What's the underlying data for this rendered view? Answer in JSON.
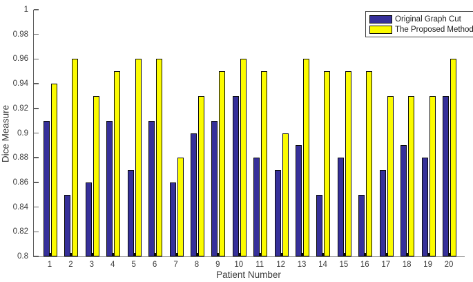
{
  "figure": {
    "ylabel": "Dice Measure",
    "xlabel": "Patient Number"
  },
  "chart_data": {
    "type": "bar",
    "title": "",
    "xlabel": "Patient Number",
    "ylabel": "Dice Measure",
    "categories": [
      "1",
      "2",
      "3",
      "4",
      "5",
      "6",
      "7",
      "8",
      "9",
      "10",
      "11",
      "12",
      "13",
      "14",
      "15",
      "16",
      "17",
      "18",
      "19",
      "20"
    ],
    "series": [
      {
        "name": "Original Graph Cut",
        "color": "#36309A",
        "values": [
          0.91,
          0.85,
          0.86,
          0.91,
          0.87,
          0.91,
          0.86,
          0.9,
          0.91,
          0.93,
          0.88,
          0.87,
          0.89,
          0.85,
          0.88,
          0.85,
          0.87,
          0.89,
          0.88,
          0.93
        ]
      },
      {
        "name": "The Proposed Method",
        "color": "#FBFB00",
        "values": [
          0.94,
          0.96,
          0.93,
          0.95,
          0.96,
          0.96,
          0.88,
          0.93,
          0.95,
          0.96,
          0.95,
          0.9,
          0.96,
          0.95,
          0.95,
          0.95,
          0.93,
          0.93,
          0.93,
          0.96
        ]
      }
    ],
    "ylim": [
      0.8,
      1.0
    ],
    "yticks": [
      0.8,
      0.82,
      0.84,
      0.86,
      0.88,
      0.9,
      0.92,
      0.94,
      0.96,
      0.98,
      1
    ],
    "ytick_labels": [
      "0.8",
      "0.82",
      "0.84",
      "0.86",
      "0.88",
      "0.9",
      "0.92",
      "0.94",
      "0.96",
      "0.98",
      "1"
    ],
    "grid": false,
    "legend_position": "top-right",
    "bar_edge_color": "#0a0a0a"
  }
}
